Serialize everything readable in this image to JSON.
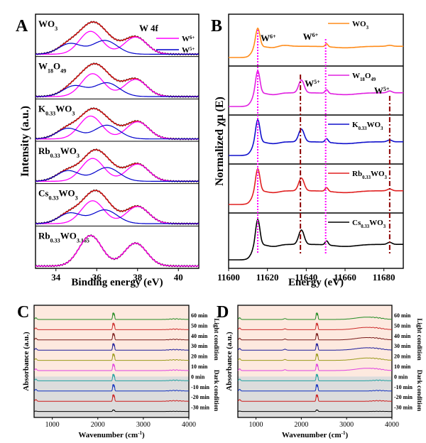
{
  "chart_data": [
    {
      "panel": "A",
      "type": "line",
      "xlabel": "Binding energy (eV)",
      "ylabel": "Intensity (a.u.)",
      "xlim": [
        33,
        41
      ],
      "xticks": [
        "34",
        "36",
        "38",
        "40"
      ],
      "x_reversed": false,
      "title_annotation": "W 4f",
      "legend": [
        {
          "label": "W6+",
          "color": "#ff00ff"
        },
        {
          "label": "W5+",
          "color": "#0000cc"
        }
      ],
      "samples": [
        {
          "label": "WO3",
          "peaks_w6": [
            35.7,
            37.9
          ],
          "peaks_w5": [
            34.7,
            36.4
          ]
        },
        {
          "label": "W18O49",
          "peaks_w6": [
            35.8,
            37.9
          ],
          "peaks_w5": [
            34.9,
            36.5
          ]
        },
        {
          "label": "K0.33WO3",
          "peaks_w6": [
            35.7,
            38.0
          ],
          "peaks_w5": [
            34.6,
            36.5
          ]
        },
        {
          "label": "Rb0.33WO3",
          "peaks_w6": [
            35.8,
            38.0
          ],
          "peaks_w5": [
            34.6,
            36.5
          ]
        },
        {
          "label": "Cs0.33WO3",
          "peaks_w6": [
            35.8,
            38.0
          ],
          "peaks_w5": [
            34.7,
            36.4
          ]
        },
        {
          "label": "Rb0.33WO3.165",
          "peaks_w6": [
            35.7,
            37.9
          ],
          "peaks_w5": []
        }
      ]
    },
    {
      "panel": "B",
      "type": "line",
      "xlabel": "Energy (eV)",
      "ylabel": "Normalized χμ (E)",
      "xlim": [
        11600,
        11690
      ],
      "xticks": [
        "11600",
        "11620",
        "11640",
        "11660",
        "11680"
      ],
      "reference_lines": [
        11615,
        11637,
        11650,
        11683
      ],
      "annotations": [
        "W6+",
        "W6+",
        "W5+",
        "W5+"
      ],
      "series": [
        {
          "name": "WO3",
          "color": "#ff8c1a"
        },
        {
          "name": "W18O49",
          "color": "#e020e0"
        },
        {
          "name": "K0.33WO3",
          "color": "#1010cc"
        },
        {
          "name": "Rb0.33WO3",
          "color": "#e02020"
        },
        {
          "name": "Cs0.33WO3",
          "color": "#000000"
        }
      ]
    },
    {
      "panel": "C",
      "type": "line",
      "xlabel": "Wavenumber (cm-1)",
      "ylabel": "Absorbance (a.u.)",
      "xlim": [
        600,
        4000
      ],
      "xticks": [
        "1000",
        "2000",
        "3000",
        "4000"
      ],
      "time_labels": [
        "60 min",
        "50 min",
        "40 min",
        "30 min",
        "20 min",
        "10 min",
        "0 min",
        "-10 min",
        "-20 min",
        "-30 min"
      ],
      "conditions": [
        "Light condition",
        "Dark condition"
      ],
      "colors": [
        "#228b22",
        "#cc2a2a",
        "#7a1a1a",
        "#1a1a9a",
        "#9a9a1a",
        "#e040e0",
        "#20a0a0",
        "#1030c0",
        "#cc1a1a",
        "#000000"
      ]
    },
    {
      "panel": "D",
      "type": "line",
      "xlabel": "Wavenumber (cm-1)",
      "ylabel": "Absorbance (a.u.)",
      "xlim": [
        600,
        4000
      ],
      "xticks": [
        "1000",
        "2000",
        "3000",
        "4000"
      ],
      "time_labels": [
        "60 min",
        "50 min",
        "40 min",
        "30 min",
        "20 min",
        "10 min",
        "0 min",
        "-10 min",
        "-20 min",
        "-30 min"
      ],
      "conditions": [
        "Light condition",
        "Dark condition"
      ],
      "colors": [
        "#228b22",
        "#cc2a2a",
        "#7a1a1a",
        "#1a1a9a",
        "#9a9a1a",
        "#e040e0",
        "#20a0a0",
        "#1030c0",
        "#cc1a1a",
        "#000000"
      ]
    }
  ]
}
